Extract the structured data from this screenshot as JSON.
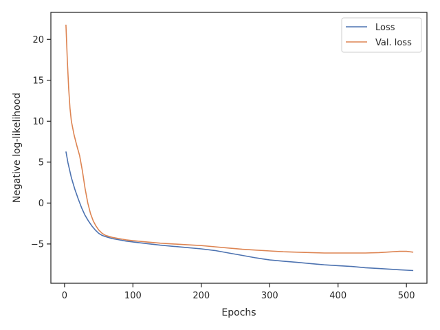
{
  "chart_data": {
    "type": "line",
    "xlabel": "Epochs",
    "ylabel": "Negative log-likelihood",
    "xlim": [
      -20,
      530
    ],
    "ylim": [
      -9.8,
      23.3
    ],
    "xticks": [
      0,
      100,
      200,
      300,
      400,
      500
    ],
    "yticks": [
      -5,
      0,
      5,
      10,
      15,
      20
    ],
    "xtick_labels": [
      "0",
      "100",
      "200",
      "300",
      "400",
      "500"
    ],
    "ytick_labels": [
      "−5",
      "0",
      "5",
      "10",
      "15",
      "20"
    ],
    "grid": false,
    "legend_position": "top-right",
    "series": [
      {
        "name": "Loss",
        "color": "#4c72b0",
        "x": [
          2,
          5,
          10,
          15,
          20,
          25,
          30,
          35,
          40,
          45,
          50,
          55,
          60,
          70,
          80,
          90,
          100,
          120,
          140,
          160,
          180,
          200,
          220,
          240,
          260,
          280,
          300,
          320,
          340,
          360,
          380,
          400,
          420,
          440,
          460,
          470,
          480,
          490,
          500,
          510
        ],
        "y": [
          6.3,
          4.9,
          3.1,
          1.7,
          0.5,
          -0.6,
          -1.5,
          -2.2,
          -2.8,
          -3.3,
          -3.7,
          -3.95,
          -4.1,
          -4.35,
          -4.5,
          -4.65,
          -4.75,
          -4.95,
          -5.15,
          -5.3,
          -5.45,
          -5.6,
          -5.8,
          -6.1,
          -6.4,
          -6.7,
          -6.95,
          -7.1,
          -7.25,
          -7.4,
          -7.55,
          -7.65,
          -7.75,
          -7.9,
          -8.0,
          -8.05,
          -8.1,
          -8.15,
          -8.2,
          -8.25
        ]
      },
      {
        "name": "Val. loss",
        "color": "#dd8452",
        "x": [
          2,
          4,
          6,
          8,
          10,
          14,
          18,
          22,
          26,
          30,
          34,
          38,
          42,
          46,
          50,
          55,
          60,
          70,
          80,
          90,
          100,
          120,
          140,
          160,
          180,
          200,
          220,
          240,
          260,
          280,
          300,
          320,
          340,
          360,
          380,
          400,
          420,
          440,
          460,
          470,
          480,
          490,
          500,
          510
        ],
        "y": [
          21.8,
          17.5,
          14.0,
          11.6,
          10.0,
          8.3,
          7.0,
          5.8,
          4.0,
          1.8,
          0.0,
          -1.3,
          -2.2,
          -2.8,
          -3.3,
          -3.7,
          -3.95,
          -4.2,
          -4.35,
          -4.5,
          -4.6,
          -4.75,
          -4.9,
          -5.0,
          -5.1,
          -5.2,
          -5.35,
          -5.5,
          -5.65,
          -5.75,
          -5.85,
          -5.95,
          -6.0,
          -6.05,
          -6.1,
          -6.1,
          -6.1,
          -6.1,
          -6.05,
          -6.0,
          -5.95,
          -5.9,
          -5.9,
          -6.0
        ]
      }
    ]
  }
}
